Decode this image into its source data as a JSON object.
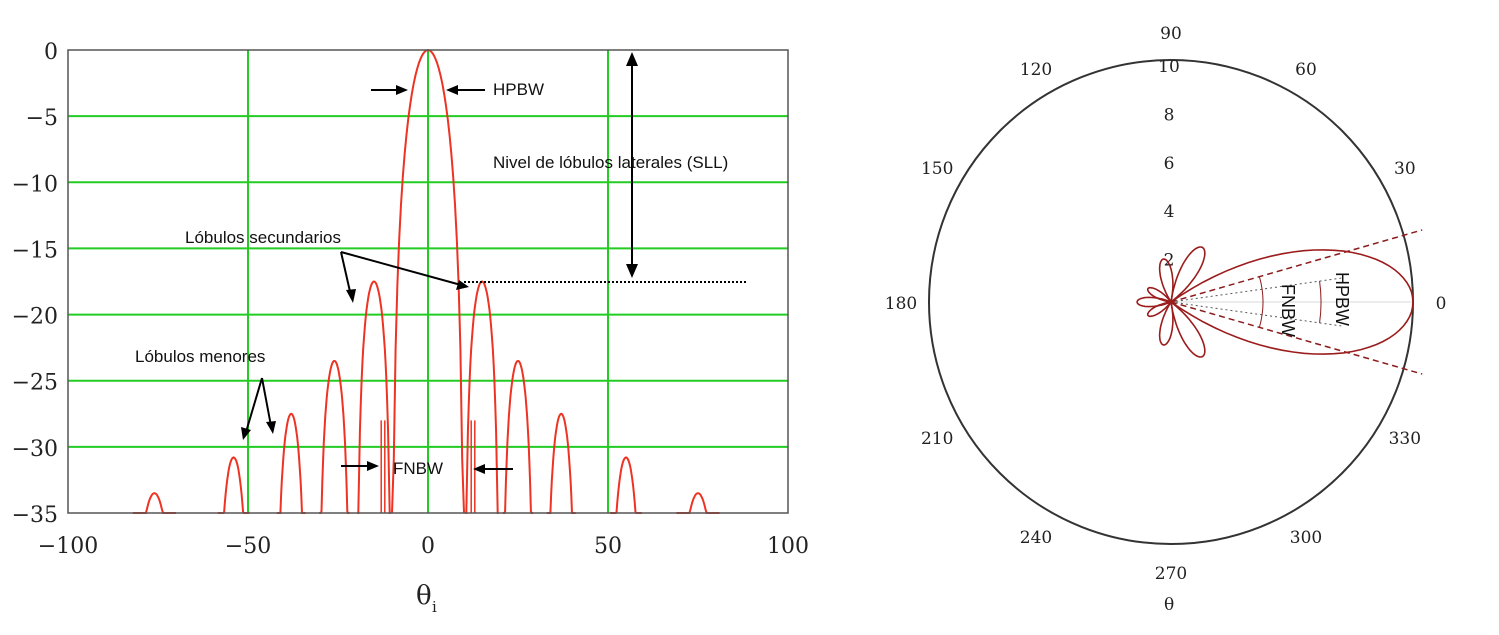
{
  "chart_data": [
    {
      "type": "line",
      "title": "",
      "xlabel": "θ",
      "xlabel_sub": "i",
      "ylabel": "",
      "xlim": [
        -100,
        100
      ],
      "ylim": [
        -35,
        0
      ],
      "grid": true,
      "grid_color": "#22cc22",
      "line_color": "#ee3322",
      "x_ticks": [
        {
          "v": -100,
          "label": "−100"
        },
        {
          "v": -50,
          "label": "−50"
        },
        {
          "v": 0,
          "label": "0"
        },
        {
          "v": 50,
          "label": "50"
        },
        {
          "v": 100,
          "label": "100"
        }
      ],
      "y_ticks": [
        {
          "v": 0,
          "label": "0"
        },
        {
          "v": -5,
          "label": "−5"
        },
        {
          "v": -10,
          "label": "−10"
        },
        {
          "v": -15,
          "label": "−15"
        },
        {
          "v": -20,
          "label": "−20"
        },
        {
          "v": -25,
          "label": "−25"
        },
        {
          "v": -30,
          "label": "−30"
        },
        {
          "v": -35,
          "label": "−35"
        }
      ],
      "main_lobe": {
        "center": 0,
        "peak": 0,
        "first_nulls": [
          -10,
          10
        ]
      },
      "side_lobes": [
        {
          "center": 15,
          "peak": -17.5
        },
        {
          "center": 25,
          "peak": -23.5
        },
        {
          "center": 37,
          "peak": -27.5
        },
        {
          "center": 55,
          "peak": -30.8
        },
        {
          "center": 75,
          "peak": -33.5
        },
        {
          "center": -15,
          "peak": -17.5
        },
        {
          "center": -26,
          "peak": -23.5
        },
        {
          "center": -38,
          "peak": -27.5
        },
        {
          "center": -54,
          "peak": -30.8
        },
        {
          "center": -76,
          "peak": -33.5
        }
      ],
      "sll_level": -17.5,
      "annotations": {
        "hpbw": "HPBW",
        "sll": "Nivel de lóbulos laterales (SLL)",
        "secondary": "Lóbulos secundarios",
        "minor": "Lóbulos menores",
        "fnbw": "FNBW"
      }
    },
    {
      "type": "polar",
      "title": "",
      "xlabel": "θ",
      "rlim": [
        0,
        10
      ],
      "radial_ticks": [
        "2",
        "4",
        "6",
        "8",
        "10"
      ],
      "angle_ticks": [
        "0",
        "30",
        "60",
        "90",
        "120",
        "150",
        "180",
        "210",
        "240",
        "270",
        "300",
        "330"
      ],
      "line_color": "#9b1c1c",
      "main_lobe": {
        "direction_deg": 0,
        "peak": 10,
        "hpbw_deg": 16,
        "fnbw_deg": 32
      },
      "side_lobes": [
        {
          "direction_deg": 60,
          "peak": 2.6
        },
        {
          "direction_deg": -60,
          "peak": 2.6
        },
        {
          "direction_deg": 100,
          "peak": 1.8
        },
        {
          "direction_deg": -100,
          "peak": 1.8
        },
        {
          "direction_deg": 180,
          "peak": 1.4
        },
        {
          "direction_deg": 150,
          "peak": 1.1
        },
        {
          "direction_deg": -150,
          "peak": 1.1
        }
      ],
      "annotations": {
        "hpbw": "HPBW",
        "fnbw": "FNBW"
      }
    }
  ]
}
